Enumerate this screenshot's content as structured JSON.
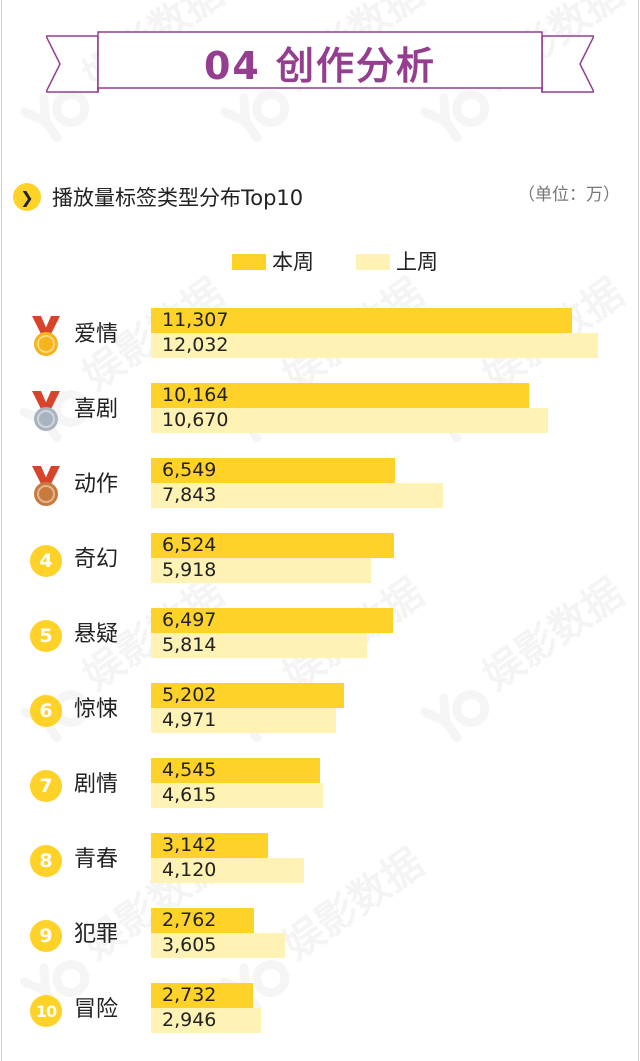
{
  "header": {
    "title": "04 创作分析"
  },
  "subtitle": {
    "icon": "chevron-right-icon",
    "text": "播放量标签类型分布Top10",
    "unit": "（单位：万）"
  },
  "watermark": {
    "text": "娱影数据"
  },
  "colors": {
    "accent": "#933e8f",
    "current": "#ffd22a",
    "previous": "#fff2b5",
    "gold": "#f5b41c",
    "silver": "#a9b3bf",
    "bronze": "#c87a3c",
    "ribbon_red": "#d8432c"
  },
  "chart_data": {
    "type": "bar",
    "orientation": "horizontal",
    "title": "播放量标签类型分布Top10",
    "unit": "（单位：万）",
    "legend_position": "top-center",
    "grid": false,
    "xlim": [
      0,
      12100
    ],
    "categories": [
      "爱情",
      "喜剧",
      "动作",
      "奇幻",
      "悬疑",
      "惊悚",
      "剧情",
      "青春",
      "犯罪",
      "冒险"
    ],
    "ranks": [
      "1",
      "2",
      "3",
      "4",
      "5",
      "6",
      "7",
      "8",
      "9",
      "10"
    ],
    "medals": [
      "gold",
      "silver",
      "bronze",
      null,
      null,
      null,
      null,
      null,
      null,
      null
    ],
    "series": [
      {
        "name": "本周",
        "values": [
          11307,
          10164,
          6549,
          6524,
          6497,
          5202,
          4545,
          3142,
          2762,
          2732
        ],
        "labels": [
          "11,307",
          "10,164",
          "6,549",
          "6,524",
          "6,497",
          "5,202",
          "4,545",
          "3,142",
          "2,762",
          "2,732"
        ]
      },
      {
        "name": "上周",
        "values": [
          12032,
          10670,
          7843,
          5918,
          5814,
          4971,
          4615,
          4120,
          3605,
          2946
        ],
        "labels": [
          "12,032",
          "10,670",
          "7,843",
          "5,918",
          "5,814",
          "4,971",
          "4,615",
          "4,120",
          "3,605",
          "2,946"
        ]
      }
    ]
  }
}
